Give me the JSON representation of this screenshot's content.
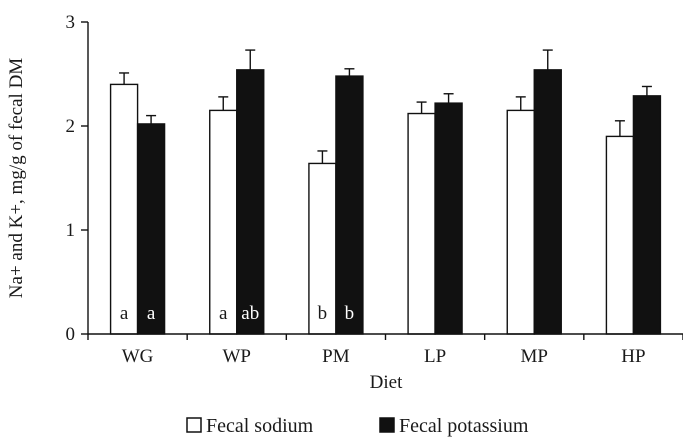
{
  "chart_data": {
    "type": "bar",
    "title": "",
    "xlabel": "Diet",
    "ylabel": "Na+ and K+, mg/g of fecal DM",
    "ylim": [
      0,
      3
    ],
    "yticks": [
      0,
      1,
      2,
      3
    ],
    "categories": [
      "WG",
      "WP",
      "PM",
      "LP",
      "MP",
      "HP"
    ],
    "series": [
      {
        "name": "Fecal sodium",
        "color": "#ffffff",
        "values": [
          2.4,
          2.15,
          1.64,
          2.12,
          2.15,
          1.9
        ],
        "errors": [
          0.11,
          0.13,
          0.12,
          0.11,
          0.13,
          0.15
        ],
        "labels": [
          "a",
          "a",
          "b",
          "",
          "",
          ""
        ]
      },
      {
        "name": "Fecal potassium",
        "color": "#111111",
        "values": [
          2.02,
          2.54,
          2.48,
          2.22,
          2.54,
          2.29
        ],
        "errors": [
          0.08,
          0.19,
          0.07,
          0.09,
          0.19,
          0.09
        ],
        "labels": [
          "a",
          "ab",
          "b",
          "",
          "",
          ""
        ]
      }
    ],
    "legend": "bottom",
    "grid": false
  }
}
